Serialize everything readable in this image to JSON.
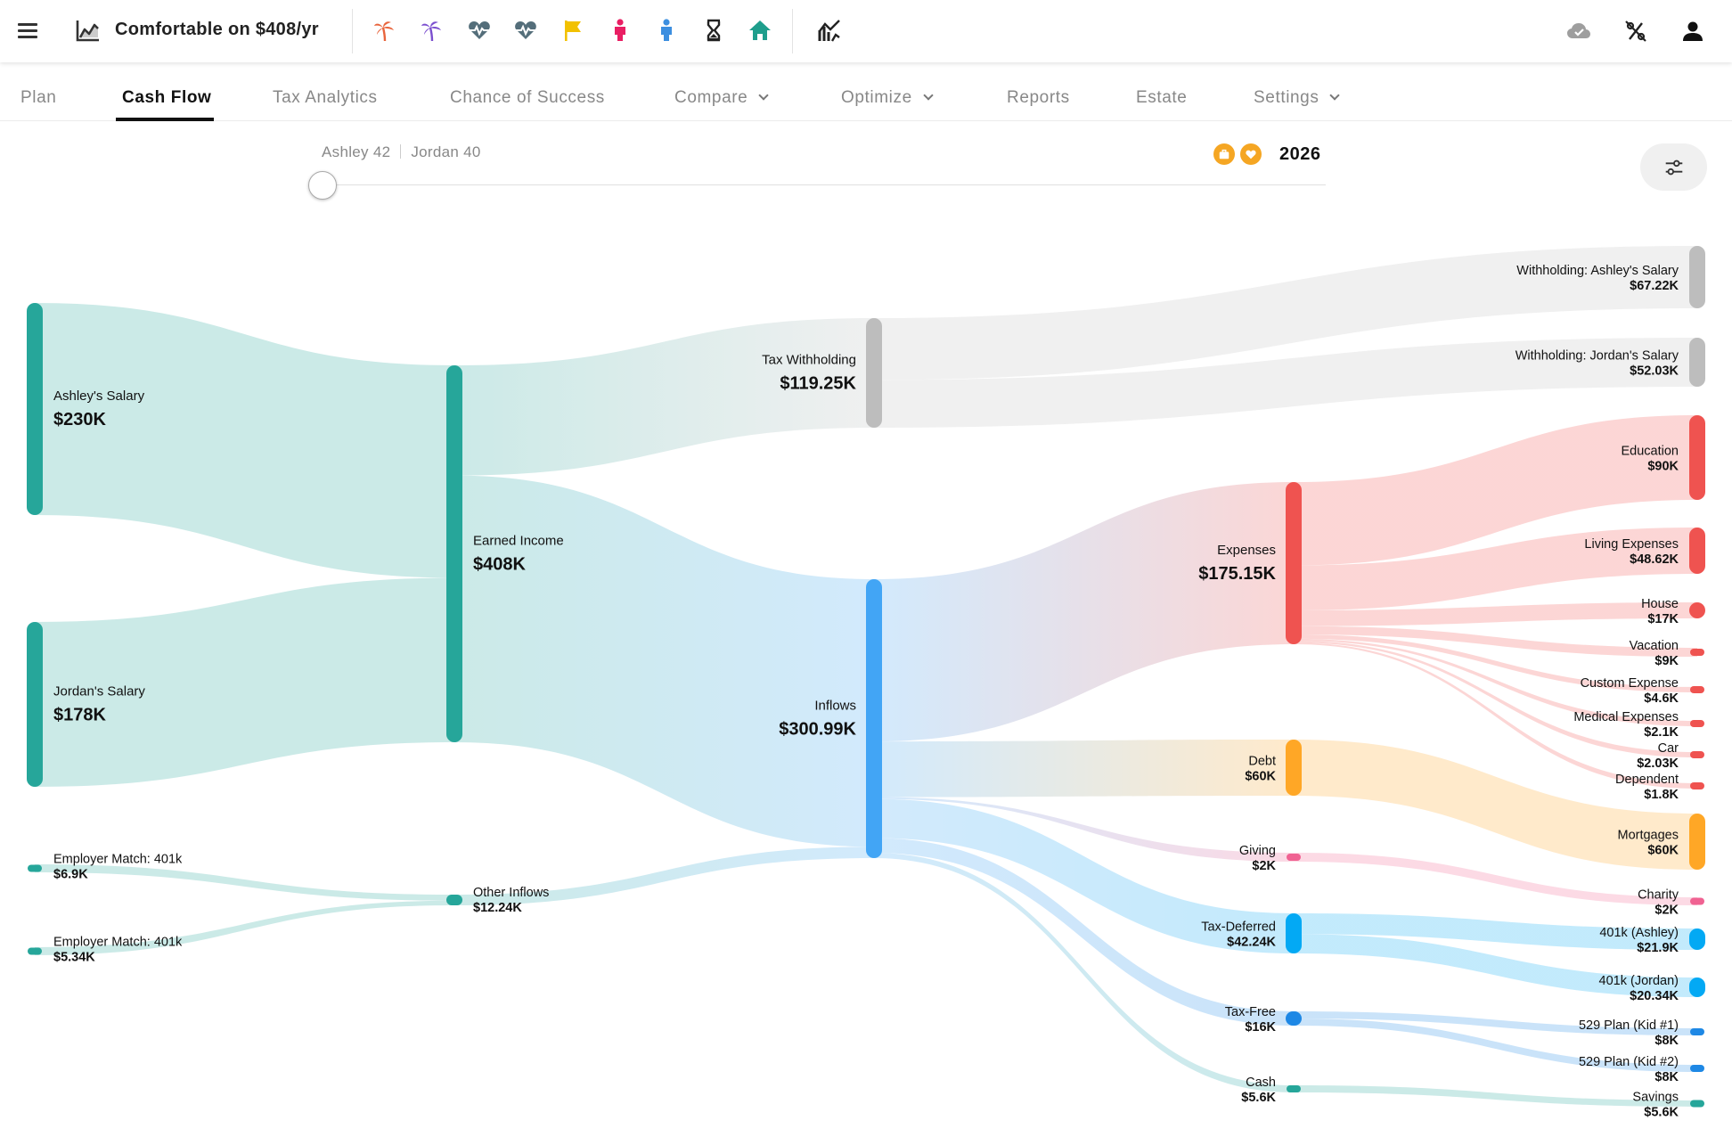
{
  "header": {
    "title": "Comfortable on $408/yr",
    "icons": [
      "menu-icon",
      "chart-line-icon",
      "palm-tree-icon",
      "palm-tree-icon",
      "heartbeat-icon",
      "heartbeat-icon",
      "flag-icon",
      "person-icon",
      "person-icon",
      "hourglass-icon",
      "home-icon",
      "analytics-icon",
      "cloud-check-icon",
      "no-tax-icon",
      "account-icon"
    ],
    "colors": {
      "palm_red": "#E8643C",
      "palm_purple": "#7B4FCF",
      "heartbeat": "#546E7A",
      "flag": "#F2C100",
      "person_pink": "#E91E63",
      "person_blue": "#3D8FE0",
      "home": "#1E9E8C"
    }
  },
  "tabs": [
    {
      "label": "Plan",
      "active": false,
      "dropdown": false
    },
    {
      "label": "Cash Flow",
      "active": true,
      "dropdown": false
    },
    {
      "label": "Tax Analytics",
      "active": false,
      "dropdown": false
    },
    {
      "label": "Chance of Success",
      "active": false,
      "dropdown": false
    },
    {
      "label": "Compare",
      "active": false,
      "dropdown": true
    },
    {
      "label": "Optimize",
      "active": false,
      "dropdown": true
    },
    {
      "label": "Reports",
      "active": false,
      "dropdown": false
    },
    {
      "label": "Estate",
      "active": false,
      "dropdown": false
    },
    {
      "label": "Settings",
      "active": false,
      "dropdown": true
    }
  ],
  "timeline": {
    "person1": "Ashley 42",
    "person2": "Jordan 40",
    "year": "2026",
    "slider_position": 0,
    "badges": [
      "briefcase-icon",
      "heart-icon"
    ]
  },
  "chart_data": {
    "type": "sankey",
    "nodes": [
      {
        "id": "ashley_salary",
        "name": "Ashley's Salary",
        "value": "$230K",
        "color": "#26A69A"
      },
      {
        "id": "jordan_salary",
        "name": "Jordan's Salary",
        "value": "$178K",
        "color": "#26A69A"
      },
      {
        "id": "match_ashley",
        "name": "Employer Match: 401k",
        "value": "$6.9K",
        "color": "#26A69A"
      },
      {
        "id": "match_jordan",
        "name": "Employer Match: 401k",
        "value": "$5.34K",
        "color": "#26A69A"
      },
      {
        "id": "earned_income",
        "name": "Earned Income",
        "value": "$408K",
        "color": "#26A69A"
      },
      {
        "id": "other_inflows",
        "name": "Other Inflows",
        "value": "$12.24K",
        "color": "#26A69A"
      },
      {
        "id": "tax_withholding",
        "name": "Tax Withholding",
        "value": "$119.25K",
        "color": "#BDBDBD"
      },
      {
        "id": "inflows",
        "name": "Inflows",
        "value": "$300.99K",
        "color": "#42A5F5"
      },
      {
        "id": "expenses",
        "name": "Expenses",
        "value": "$175.15K",
        "color": "#EF5350"
      },
      {
        "id": "debt",
        "name": "Debt",
        "value": "$60K",
        "color": "#FFA726"
      },
      {
        "id": "giving",
        "name": "Giving",
        "value": "$2K",
        "color": "#F06292"
      },
      {
        "id": "tax_deferred",
        "name": "Tax-Deferred",
        "value": "$42.24K",
        "color": "#03A9F4"
      },
      {
        "id": "tax_free",
        "name": "Tax-Free",
        "value": "$16K",
        "color": "#1E88E5"
      },
      {
        "id": "cash",
        "name": "Cash",
        "value": "$5.6K",
        "color": "#26A69A"
      },
      {
        "id": "wh_ashley",
        "name": "Withholding: Ashley's Salary",
        "value": "$67.22K",
        "color": "#BDBDBD"
      },
      {
        "id": "wh_jordan",
        "name": "Withholding: Jordan's Salary",
        "value": "$52.03K",
        "color": "#BDBDBD"
      },
      {
        "id": "education",
        "name": "Education",
        "value": "$90K",
        "color": "#EF5350"
      },
      {
        "id": "living",
        "name": "Living Expenses",
        "value": "$48.62K",
        "color": "#EF5350"
      },
      {
        "id": "house",
        "name": "House",
        "value": "$17K",
        "color": "#EF5350"
      },
      {
        "id": "vacation",
        "name": "Vacation",
        "value": "$9K",
        "color": "#EF5350"
      },
      {
        "id": "custom",
        "name": "Custom Expense",
        "value": "$4.6K",
        "color": "#EF5350"
      },
      {
        "id": "medical",
        "name": "Medical Expenses",
        "value": "$2.1K",
        "color": "#EF5350"
      },
      {
        "id": "car",
        "name": "Car",
        "value": "$2.03K",
        "color": "#EF5350"
      },
      {
        "id": "dependent",
        "name": "Dependent",
        "value": "$1.8K",
        "color": "#EF5350"
      },
      {
        "id": "mortgages",
        "name": "Mortgages",
        "value": "$60K",
        "color": "#FFA726"
      },
      {
        "id": "charity",
        "name": "Charity",
        "value": "$2K",
        "color": "#F06292"
      },
      {
        "id": "k401_ashley",
        "name": "401k (Ashley)",
        "value": "$21.9K",
        "color": "#03A9F4"
      },
      {
        "id": "k401_jordan",
        "name": "401k (Jordan)",
        "value": "$20.34K",
        "color": "#03A9F4"
      },
      {
        "id": "plan529_1",
        "name": "529 Plan (Kid #1)",
        "value": "$8K",
        "color": "#1E88E5"
      },
      {
        "id": "plan529_2",
        "name": "529 Plan (Kid #2)",
        "value": "$8K",
        "color": "#1E88E5"
      },
      {
        "id": "savings",
        "name": "Savings",
        "value": "$5.6K",
        "color": "#26A69A"
      }
    ],
    "links": [
      {
        "source": "ashley_salary",
        "target": "earned_income",
        "value": 230
      },
      {
        "source": "jordan_salary",
        "target": "earned_income",
        "value": 178
      },
      {
        "source": "match_ashley",
        "target": "other_inflows",
        "value": 6.9
      },
      {
        "source": "match_jordan",
        "target": "other_inflows",
        "value": 5.34
      },
      {
        "source": "earned_income",
        "target": "tax_withholding",
        "value": 119.25
      },
      {
        "source": "earned_income",
        "target": "inflows",
        "value": 288.75
      },
      {
        "source": "other_inflows",
        "target": "inflows",
        "value": 12.24
      },
      {
        "source": "tax_withholding",
        "target": "wh_ashley",
        "value": 67.22
      },
      {
        "source": "tax_withholding",
        "target": "wh_jordan",
        "value": 52.03
      },
      {
        "source": "inflows",
        "target": "expenses",
        "value": 175.15
      },
      {
        "source": "inflows",
        "target": "debt",
        "value": 60
      },
      {
        "source": "inflows",
        "target": "giving",
        "value": 2
      },
      {
        "source": "inflows",
        "target": "tax_deferred",
        "value": 42.24
      },
      {
        "source": "inflows",
        "target": "tax_free",
        "value": 16
      },
      {
        "source": "inflows",
        "target": "cash",
        "value": 5.6
      },
      {
        "source": "expenses",
        "target": "education",
        "value": 90
      },
      {
        "source": "expenses",
        "target": "living",
        "value": 48.62
      },
      {
        "source": "expenses",
        "target": "house",
        "value": 17
      },
      {
        "source": "expenses",
        "target": "vacation",
        "value": 9
      },
      {
        "source": "expenses",
        "target": "custom",
        "value": 4.6
      },
      {
        "source": "expenses",
        "target": "medical",
        "value": 2.1
      },
      {
        "source": "expenses",
        "target": "car",
        "value": 2.03
      },
      {
        "source": "expenses",
        "target": "dependent",
        "value": 1.8
      },
      {
        "source": "debt",
        "target": "mortgages",
        "value": 60
      },
      {
        "source": "giving",
        "target": "charity",
        "value": 2
      },
      {
        "source": "tax_deferred",
        "target": "k401_ashley",
        "value": 21.9
      },
      {
        "source": "tax_deferred",
        "target": "k401_jordan",
        "value": 20.34
      },
      {
        "source": "tax_free",
        "target": "plan529_1",
        "value": 8
      },
      {
        "source": "tax_free",
        "target": "plan529_2",
        "value": 8
      },
      {
        "source": "cash",
        "target": "savings",
        "value": 5.6
      }
    ]
  }
}
